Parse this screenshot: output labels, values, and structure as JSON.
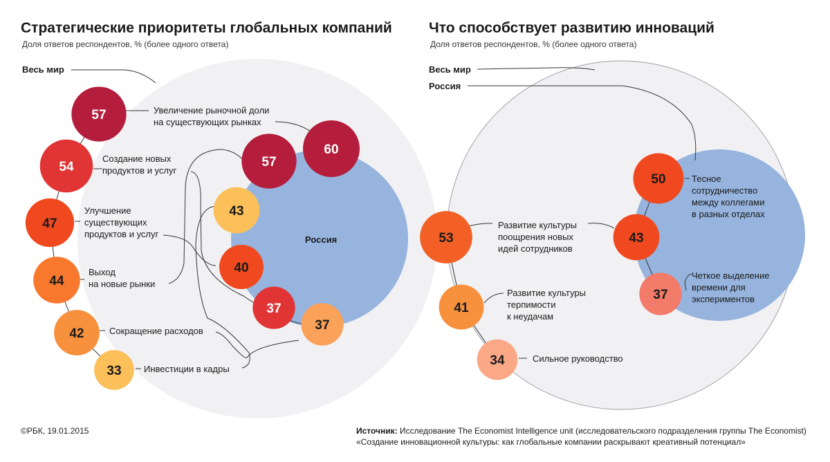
{
  "footer": {
    "copyright": "©РБК, 19.01.2015",
    "source_prefix": "Источник:",
    "source_line1": " Исследование The Economist Intelligence unit (исследовательского подразделения группы The Economist)",
    "source_line2": "«Создание инновационной культуры: как глобальные компании раскрывают креативный потенциал»"
  },
  "chart_data": [
    {
      "type": "bubble",
      "title": "Стратегические приоритеты глобальных компаний",
      "subtitle": "Доля ответов респондентов, % (более одного ответа)",
      "group_labels": {
        "world": "Весь мир",
        "russia": "Россия"
      },
      "unit": "%",
      "categories": [
        [
          "Увеличение рыночной доли",
          "на существующих рынках"
        ],
        [
          "Создание новых",
          "продуктов и услуг"
        ],
        [
          "Улучшение",
          "существующих",
          "продуктов и услуг"
        ],
        [
          "Выход",
          "на новые рынки"
        ],
        [
          "Сокращение расходов"
        ],
        [
          "Инвестиции в кадры"
        ]
      ],
      "series": [
        {
          "name": "Весь мир",
          "values": [
            57,
            54,
            47,
            44,
            42,
            33
          ]
        },
        {
          "name": "Россия",
          "values": [
            60,
            57,
            40,
            37,
            37,
            43
          ]
        }
      ]
    },
    {
      "type": "bubble",
      "title": "Что способствует развитию инноваций",
      "subtitle": "Доля ответов респондентов, % (более одного ответа)",
      "group_labels": {
        "world": "Весь мир",
        "russia": "Россия"
      },
      "unit": "%",
      "categories": [
        [
          "Тесное",
          "сотрудничество",
          "между коллегами",
          "в разных отделах"
        ],
        [
          "Развитие культуры",
          "поощрения новых",
          "идей сотрудников"
        ],
        [
          "Четкое выделение",
          "времени для",
          "экспериментов"
        ],
        [
          "Развитие культуры",
          "терпимости",
          "к неудачам"
        ],
        [
          "Сильное руководство"
        ]
      ],
      "series": [
        {
          "name": "Весь мир",
          "values": [
            null,
            53,
            null,
            41,
            34
          ]
        },
        {
          "name": "Россия",
          "values": [
            50,
            43,
            37,
            null,
            null
          ]
        }
      ]
    }
  ]
}
